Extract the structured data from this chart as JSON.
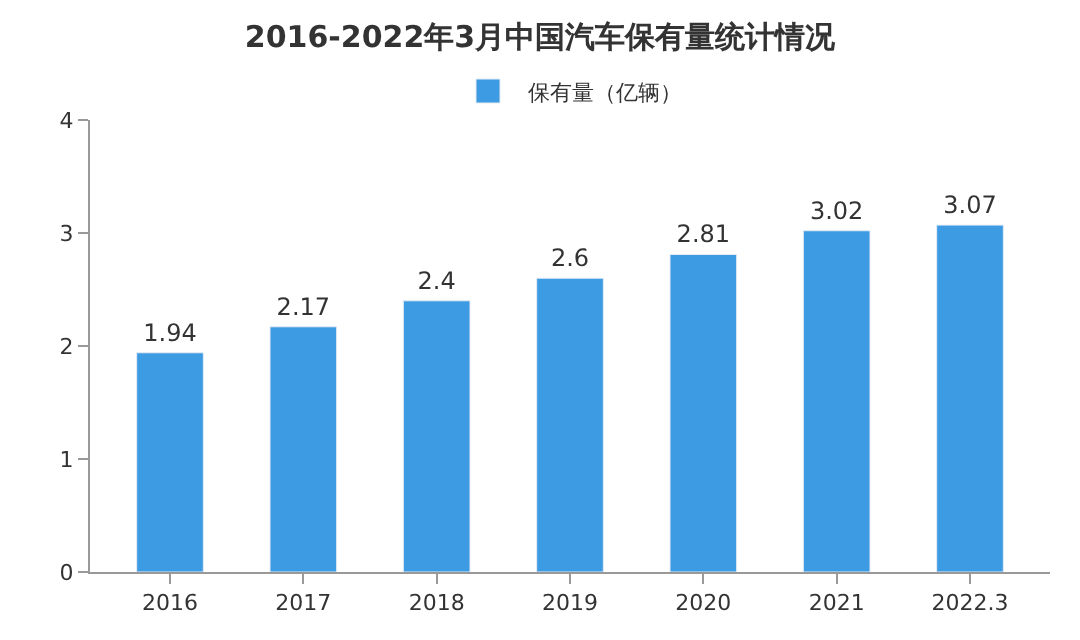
{
  "chart_data": {
    "type": "bar",
    "title": "2016-2022年3月中国汽车保有量统计情况",
    "categories": [
      "2016",
      "2017",
      "2018",
      "2019",
      "2020",
      "2021",
      "2022.3"
    ],
    "series": [
      {
        "name": "保有量（亿辆）",
        "color": "#3d9be3",
        "values": [
          1.94,
          2.17,
          2.4,
          2.6,
          2.81,
          3.02,
          3.07
        ]
      }
    ],
    "ylim": [
      0,
      4
    ],
    "yticks": [
      0,
      1,
      2,
      3,
      4
    ],
    "data_labels": true,
    "legend": "top"
  }
}
